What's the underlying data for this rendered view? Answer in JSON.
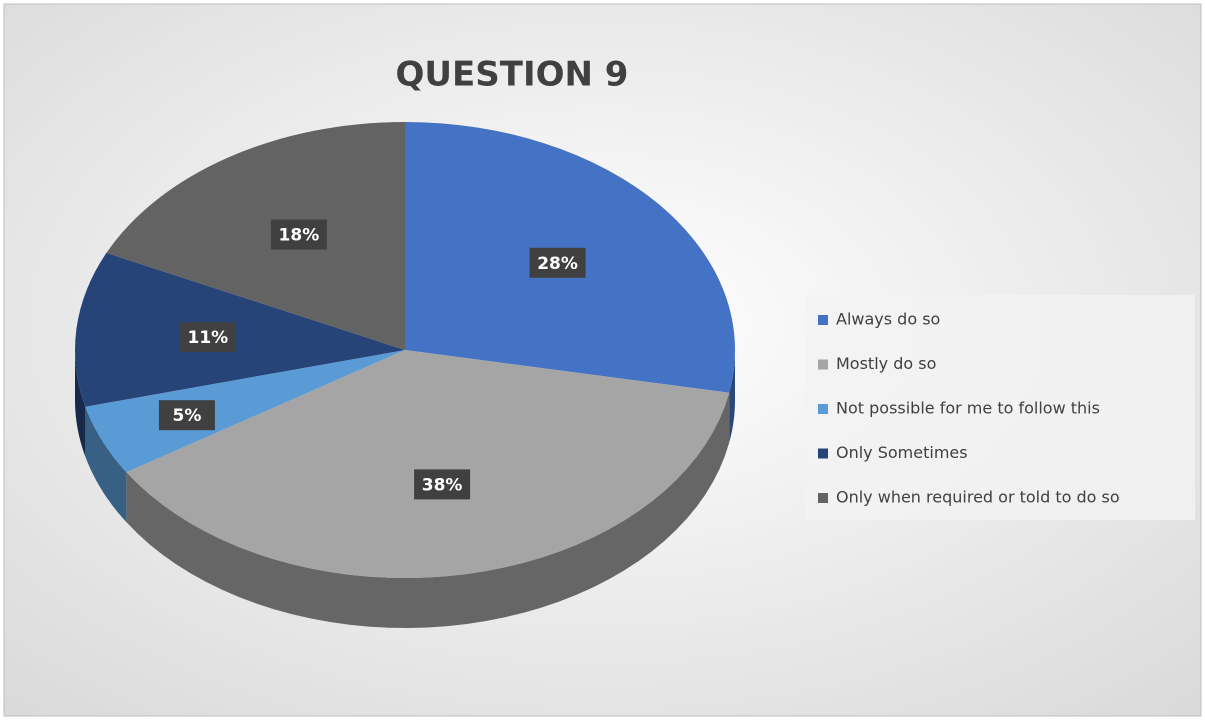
{
  "chart_data": {
    "type": "pie3d",
    "title": "QUESTION 9",
    "categories": [
      "Always do so",
      "Mostly do so",
      "Not possible for me to follow this",
      "Only Sometimes",
      "Only when required or told to do so"
    ],
    "values": [
      28,
      38,
      5,
      11,
      18
    ],
    "value_labels": [
      "28%",
      "38%",
      "5%",
      "11%",
      "18%"
    ],
    "colors": [
      "#4472c4",
      "#a5a5a5",
      "#5b9bd5",
      "#264478",
      "#636363"
    ],
    "legend": "right"
  }
}
